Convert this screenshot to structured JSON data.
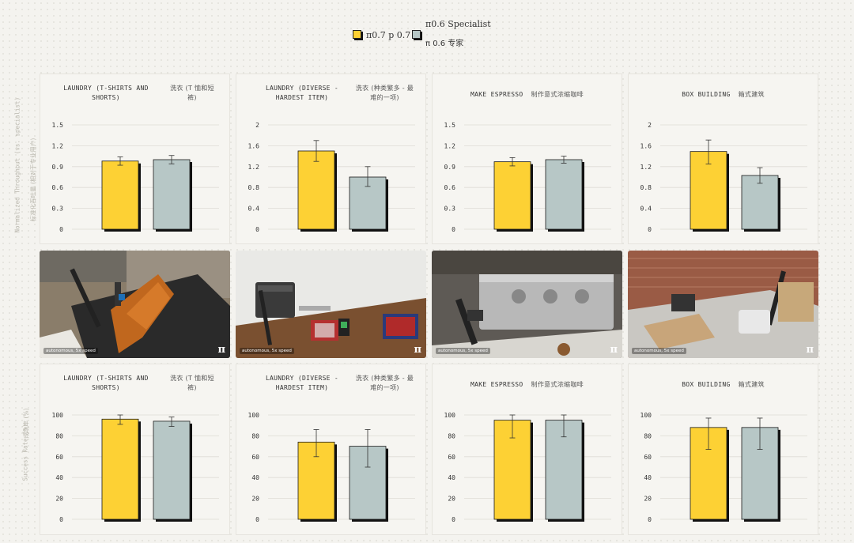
{
  "legend": {
    "items": [
      {
        "label": "π0.7 p 0.7",
        "color": "#fdd134"
      },
      {
        "label": "π0.6 Specialist",
        "label_zh": "π 0.6 专家",
        "color": "#b7c7c6"
      }
    ]
  },
  "y_labels": {
    "throughput": "Normalized Throughput (vs. specialist)",
    "throughput_zh": "标准化吞吐量 (相对于专业用户)",
    "success": "Success Rate (%)",
    "success_zh": "成功率 (%)"
  },
  "colors": {
    "pi07": "#fdd134",
    "pi06": "#b7c7c6",
    "shadow": "#111111",
    "grid": "#dedcd5"
  },
  "photos": [
    {
      "caption": "autonomous, 5x speed",
      "logo": "π",
      "icon": "robot-laundry-photo"
    },
    {
      "caption": "autonomous, 5x speed",
      "logo": "π",
      "icon": "robot-laundry-diverse-photo"
    },
    {
      "caption": "autonomous, 5x speed",
      "logo": "π",
      "icon": "robot-espresso-photo"
    },
    {
      "caption": "autonomous, 5x speed",
      "logo": "π",
      "icon": "robot-box-photo"
    }
  ],
  "chart_data": [
    {
      "type": "bar",
      "id": "throughput-laundry",
      "title": "LAUNDRY (T-SHIRTS AND SHORTS)",
      "title_lines": [
        "LAUNDRY (T-SHIRTS AND",
        "SHORTS)"
      ],
      "title_zh_lines": [
        "洗衣 (T 恤和短",
        "裤)"
      ],
      "ylim": [
        0,
        1.5
      ],
      "yticks": [
        "0",
        "0.3",
        "0.6",
        "0.9",
        "1.2",
        "1.5"
      ],
      "ytick_values": [
        0,
        0.3,
        0.6,
        0.9,
        1.2,
        1.5
      ],
      "values": [
        0.98,
        1.0
      ],
      "errors": [
        [
          0.92,
          1.04
        ],
        [
          0.94,
          1.06
        ]
      ]
    },
    {
      "type": "bar",
      "id": "throughput-laundry-diverse",
      "title": "LAUNDRY (DIVERSE - HARDEST ITEM)",
      "title_lines": [
        "LAUNDRY (DIVERSE -",
        "HARDEST ITEM)"
      ],
      "title_zh_lines": [
        "洗衣 (种类繁多 - 最",
        "难的一项)"
      ],
      "ylim": [
        0,
        2
      ],
      "yticks": [
        "0",
        "0.4",
        "0.8",
        "1.2",
        "1.6",
        "2"
      ],
      "ytick_values": [
        0,
        0.4,
        0.8,
        1.2,
        1.6,
        2
      ],
      "values": [
        1.5,
        1.0
      ],
      "errors": [
        [
          1.3,
          1.7
        ],
        [
          0.82,
          1.2
        ]
      ]
    },
    {
      "type": "bar",
      "id": "throughput-espresso",
      "title": "MAKE ESPRESSO",
      "title_zh": "制作意式浓缩咖啡",
      "ylim": [
        0,
        1.5
      ],
      "yticks": [
        "0",
        "0.3",
        "0.6",
        "0.9",
        "1.2",
        "1.5"
      ],
      "ytick_values": [
        0,
        0.3,
        0.6,
        0.9,
        1.2,
        1.5
      ],
      "values": [
        0.97,
        1.0
      ],
      "errors": [
        [
          0.91,
          1.03
        ],
        [
          0.95,
          1.05
        ]
      ]
    },
    {
      "type": "bar",
      "id": "throughput-box",
      "title": "BOX BUILDING",
      "title_zh": "箱式建筑",
      "ylim": [
        0,
        2
      ],
      "yticks": [
        "0",
        "0.4",
        "0.8",
        "1.2",
        "1.6",
        "2"
      ],
      "ytick_values": [
        0,
        0.4,
        0.8,
        1.2,
        1.6,
        2
      ],
      "values": [
        1.49,
        1.03
      ],
      "errors": [
        [
          1.25,
          1.71
        ],
        [
          0.88,
          1.18
        ]
      ]
    },
    {
      "type": "bar",
      "id": "success-laundry",
      "title": "LAUNDRY (T-SHIRTS AND SHORTS)",
      "title_lines": [
        "LAUNDRY (T-SHIRTS AND",
        "SHORTS)"
      ],
      "title_zh_lines": [
        "洗衣 (T 恤和短",
        "裤)"
      ],
      "ylim": [
        0,
        100
      ],
      "yticks": [
        "0",
        "20",
        "40",
        "60",
        "80",
        "100"
      ],
      "ytick_values": [
        0,
        20,
        40,
        60,
        80,
        100
      ],
      "values": [
        96,
        94
      ],
      "errors": [
        [
          91,
          100
        ],
        [
          89,
          98
        ]
      ]
    },
    {
      "type": "bar",
      "id": "success-laundry-diverse",
      "title": "LAUNDRY (DIVERSE - HARDEST ITEM)",
      "title_lines": [
        "LAUNDRY (DIVERSE -",
        "HARDEST ITEM)"
      ],
      "title_zh_lines": [
        "洗衣 (种类繁多 - 最",
        "难的一项)"
      ],
      "ylim": [
        0,
        100
      ],
      "yticks": [
        "0",
        "20",
        "40",
        "60",
        "80",
        "100"
      ],
      "ytick_values": [
        0,
        20,
        40,
        60,
        80,
        100
      ],
      "values": [
        74,
        70
      ],
      "errors": [
        [
          60,
          86
        ],
        [
          50,
          86
        ]
      ]
    },
    {
      "type": "bar",
      "id": "success-espresso",
      "title": "MAKE ESPRESSO",
      "title_zh": "制作意式浓缩咖啡",
      "ylim": [
        0,
        100
      ],
      "yticks": [
        "0",
        "20",
        "40",
        "60",
        "80",
        "100"
      ],
      "ytick_values": [
        0,
        20,
        40,
        60,
        80,
        100
      ],
      "values": [
        95,
        95
      ],
      "errors": [
        [
          78,
          100
        ],
        [
          79,
          100
        ]
      ]
    },
    {
      "type": "bar",
      "id": "success-box",
      "title": "BOX BUILDING",
      "title_zh": "箱式建筑",
      "ylim": [
        0,
        100
      ],
      "yticks": [
        "0",
        "20",
        "40",
        "60",
        "80",
        "100"
      ],
      "ytick_values": [
        0,
        20,
        40,
        60,
        80,
        100
      ],
      "values": [
        88,
        88
      ],
      "errors": [
        [
          67,
          97
        ],
        [
          67,
          97
        ]
      ]
    }
  ]
}
